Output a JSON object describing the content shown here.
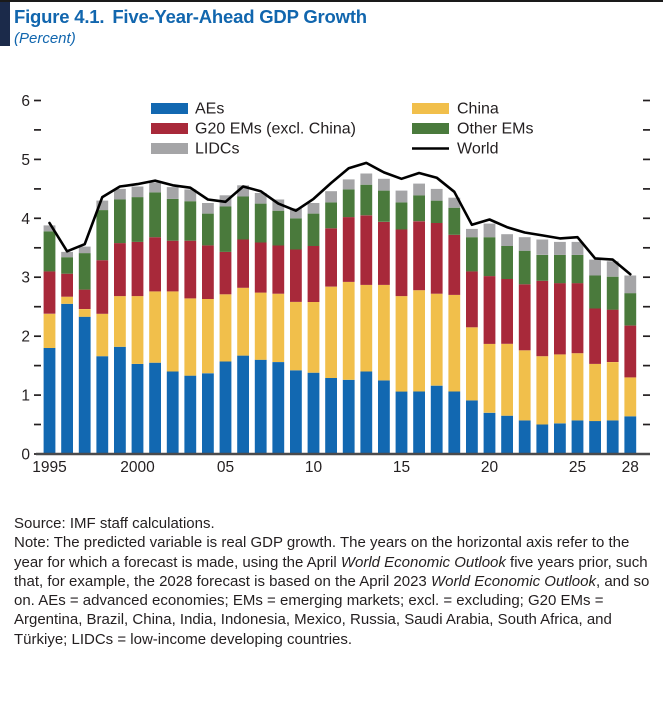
{
  "figure": {
    "label": "Figure 4.1.",
    "title": "Five-Year-Ahead GDP Growth",
    "subtitle": "(Percent)"
  },
  "legend": {
    "items": [
      {
        "label": "AEs",
        "color": "#1268b1",
        "type": "box"
      },
      {
        "label": "G20 EMs (excl. China)",
        "color": "#a8293a",
        "type": "box"
      },
      {
        "label": "LIDCs",
        "color": "#a5a5a7",
        "type": "box"
      },
      {
        "label": "China",
        "color": "#f1bf4b",
        "type": "box"
      },
      {
        "label": "Other EMs",
        "color": "#4a7a3c",
        "type": "box"
      },
      {
        "label": "World",
        "color": "#000000",
        "type": "line"
      }
    ]
  },
  "chart_data": {
    "type": "bar",
    "subtype": "stacked-bar-with-line",
    "title": "Five-Year-Ahead GDP Growth (Percent)",
    "xlabel": "",
    "ylabel": "",
    "ylim": [
      0,
      6
    ],
    "grid": false,
    "legend_position": "top-inside",
    "categories": [
      1995,
      1996,
      1997,
      1998,
      1999,
      2000,
      2001,
      2002,
      2003,
      2004,
      2005,
      2006,
      2007,
      2008,
      2009,
      2010,
      2011,
      2012,
      2013,
      2014,
      2015,
      2016,
      2017,
      2018,
      2019,
      2020,
      2021,
      2022,
      2023,
      2024,
      2025,
      2026,
      2027,
      2028
    ],
    "series": [
      {
        "name": "AEs",
        "color": "#1268b1",
        "values": [
          1.8,
          2.55,
          2.33,
          1.66,
          1.82,
          1.53,
          1.55,
          1.4,
          1.33,
          1.37,
          1.57,
          1.67,
          1.6,
          1.56,
          1.42,
          1.38,
          1.29,
          1.26,
          1.4,
          1.25,
          1.06,
          1.06,
          1.16,
          1.06,
          0.91,
          0.7,
          0.65,
          0.57,
          0.5,
          0.52,
          0.57,
          0.56,
          0.57,
          0.64
        ]
      },
      {
        "name": "China",
        "color": "#f1bf4b",
        "values": [
          0.58,
          0.12,
          0.13,
          0.72,
          0.86,
          1.15,
          1.21,
          1.36,
          1.31,
          1.26,
          1.14,
          1.15,
          1.14,
          1.16,
          1.16,
          1.2,
          1.55,
          1.66,
          1.47,
          1.62,
          1.62,
          1.72,
          1.56,
          1.64,
          1.24,
          1.17,
          1.22,
          1.19,
          1.16,
          1.17,
          1.14,
          0.97,
          0.99,
          0.66
        ]
      },
      {
        "name": "G20 EMs (excl. China)",
        "color": "#a8293a",
        "values": [
          0.72,
          0.39,
          0.33,
          0.91,
          0.9,
          0.92,
          0.92,
          0.86,
          0.98,
          0.91,
          0.72,
          0.82,
          0.85,
          0.82,
          0.89,
          0.95,
          0.99,
          1.1,
          1.18,
          1.07,
          1.13,
          1.17,
          1.2,
          1.02,
          0.95,
          1.15,
          1.1,
          1.12,
          1.28,
          1.21,
          1.19,
          0.94,
          0.89,
          0.88
        ]
      },
      {
        "name": "Other EMs",
        "color": "#4a7a3c",
        "values": [
          0.68,
          0.28,
          0.62,
          0.85,
          0.74,
          0.76,
          0.76,
          0.71,
          0.67,
          0.54,
          0.77,
          0.73,
          0.66,
          0.59,
          0.53,
          0.55,
          0.44,
          0.47,
          0.52,
          0.53,
          0.46,
          0.44,
          0.38,
          0.46,
          0.58,
          0.66,
          0.56,
          0.57,
          0.44,
          0.48,
          0.48,
          0.56,
          0.56,
          0.55
        ]
      },
      {
        "name": "LIDCs",
        "color": "#a5a5a7",
        "values": [
          0.1,
          0.09,
          0.11,
          0.16,
          0.18,
          0.18,
          0.17,
          0.2,
          0.2,
          0.18,
          0.19,
          0.19,
          0.18,
          0.19,
          0.17,
          0.18,
          0.19,
          0.17,
          0.19,
          0.2,
          0.2,
          0.2,
          0.2,
          0.17,
          0.14,
          0.23,
          0.2,
          0.23,
          0.26,
          0.22,
          0.22,
          0.27,
          0.26,
          0.3
        ]
      }
    ],
    "line_series": {
      "name": "World",
      "color": "#000000",
      "values": [
        3.92,
        3.44,
        3.56,
        4.36,
        4.54,
        4.58,
        4.64,
        4.56,
        4.52,
        4.32,
        4.28,
        4.54,
        4.46,
        4.25,
        4.13,
        4.33,
        4.6,
        4.85,
        4.94,
        4.78,
        4.67,
        4.77,
        4.69,
        4.45,
        3.89,
        3.98,
        3.85,
        3.76,
        3.71,
        3.66,
        3.68,
        3.32,
        3.3,
        3.05
      ]
    },
    "ytick_labels": [
      "0",
      "1",
      "2",
      "3",
      "4",
      "5",
      "6"
    ],
    "ytick_values": [
      0,
      1,
      2,
      3,
      4,
      5,
      6
    ],
    "ytick_minor_step": 0.5,
    "xtick_labels": [
      "1995",
      "2000",
      "05",
      "10",
      "15",
      "20",
      "25",
      "28"
    ],
    "xtick_years": [
      1995,
      2000,
      2005,
      2010,
      2015,
      2020,
      2025,
      2028
    ]
  },
  "footer": {
    "source": "Source: IMF staff calculations.",
    "note_parts": [
      {
        "t": "Note: The predicted variable is real GDP growth. The years on the horizontal axis refer to the year for which a forecast is made, using the April ",
        "i": false
      },
      {
        "t": "World Economic Outlook",
        "i": true
      },
      {
        "t": " five years prior, such that, for example, the 2028 forecast is based on the April 2023 ",
        "i": false
      },
      {
        "t": "World Economic Outlook",
        "i": true
      },
      {
        "t": ", and so on. AEs = advanced economies; EMs = emerging markets; excl. = excluding; G20 EMs = Argentina, Brazil, China, India, Indonesia, Mexico, Russia, Saudi Arabia, South Africa, and Türkiye; LIDCs = low-income developing countries.",
        "i": false
      }
    ]
  }
}
